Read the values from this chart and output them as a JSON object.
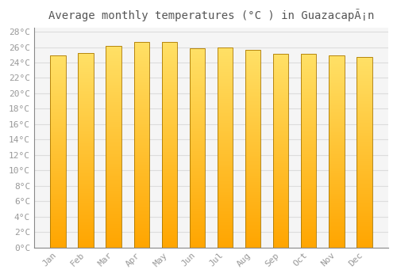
{
  "title": "Average monthly temperatures (°C ) in GuazacapÃ¡n",
  "months": [
    "Jan",
    "Feb",
    "Mar",
    "Apr",
    "May",
    "Jun",
    "Jul",
    "Aug",
    "Sep",
    "Oct",
    "Nov",
    "Dec"
  ],
  "values": [
    24.9,
    25.2,
    26.2,
    26.7,
    26.7,
    25.8,
    26.0,
    25.6,
    25.1,
    25.1,
    24.9,
    24.7
  ],
  "bar_color_bottom": "#FFA500",
  "bar_color_top": "#FFD700",
  "bar_edge_color": "#CC8800",
  "background_color": "#ffffff",
  "plot_bg_color": "#f5f5f5",
  "grid_color": "#dddddd",
  "tick_label_color": "#999999",
  "title_color": "#555555",
  "ylim": [
    0,
    28
  ],
  "ytick_step": 2,
  "title_fontsize": 10,
  "tick_fontsize": 8,
  "bar_width": 0.55
}
